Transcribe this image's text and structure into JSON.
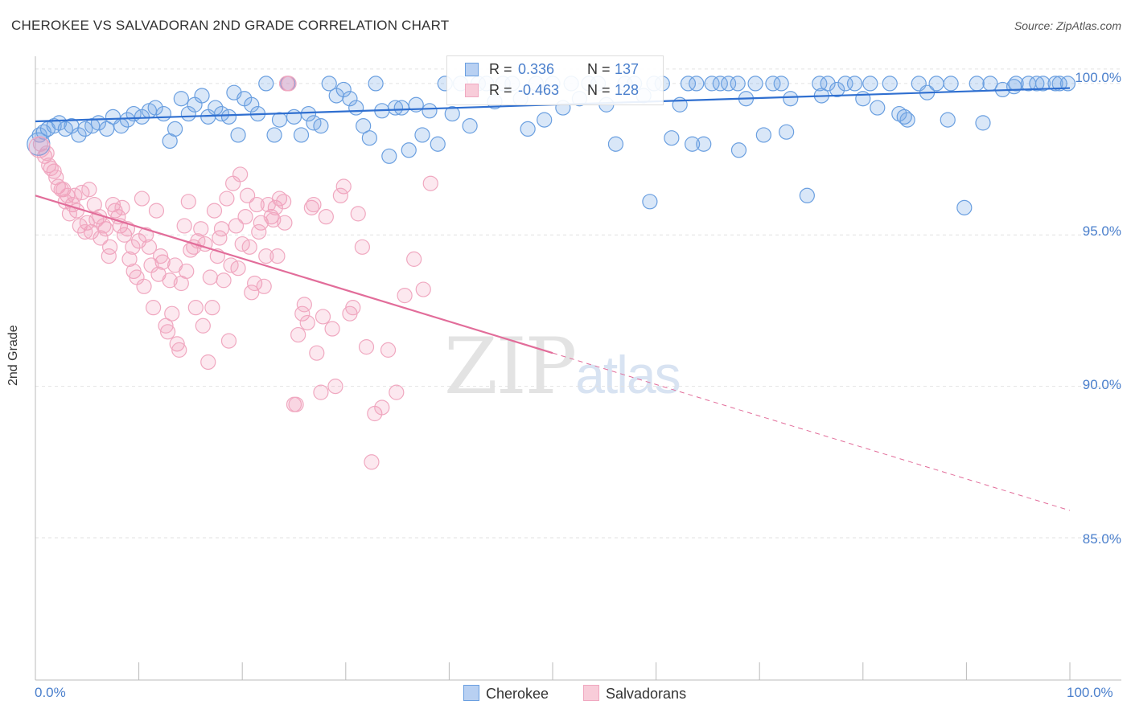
{
  "title": "CHEROKEE VS SALVADORAN 2ND GRADE CORRELATION CHART",
  "source": "Source: ZipAtlas.com",
  "watermark": {
    "zip": "ZIP",
    "atlas": "atlas"
  },
  "legend": {
    "r_label": "R =",
    "n_label": "N =",
    "cherokee": {
      "r": "0.336",
      "n": "137"
    },
    "salvadoran": {
      "r": "-0.463",
      "n": "128"
    }
  },
  "chart_data": {
    "type": "scatter",
    "title": "CHEROKEE VS SALVADORAN 2ND GRADE CORRELATION CHART",
    "xlabel": "",
    "ylabel": "2nd Grade",
    "xlim": [
      0,
      100
    ],
    "ylim": [
      80.3,
      100.9
    ],
    "x_tick_labels": [
      "0.0%",
      "100.0%"
    ],
    "y_ticks": [
      85,
      90,
      95,
      100
    ],
    "y_tick_labels": [
      "85.0%",
      "90.0%",
      "95.0%",
      "100.0%"
    ],
    "legend_position": "top-center",
    "series": [
      {
        "name": "Cherokee",
        "color": "#6a9fe0",
        "line_color": "#2f6fd0",
        "trend": {
          "x": [
            0,
            100
          ],
          "y": [
            98.75,
            99.85
          ],
          "dashed_from": null
        },
        "points": [
          [
            0.4,
            98.3
          ],
          [
            0.8,
            98.4
          ],
          [
            1.2,
            98.5
          ],
          [
            1.8,
            98.6
          ],
          [
            2.3,
            98.7
          ],
          [
            2.9,
            98.5
          ],
          [
            3.5,
            98.6
          ],
          [
            4.2,
            98.3
          ],
          [
            4.8,
            98.5
          ],
          [
            5.5,
            98.6
          ],
          [
            6.1,
            98.7
          ],
          [
            6.9,
            98.5
          ],
          [
            7.5,
            98.9
          ],
          [
            8.3,
            98.6
          ],
          [
            8.9,
            98.8
          ],
          [
            9.5,
            99.0
          ],
          [
            10.3,
            98.9
          ],
          [
            11.0,
            99.1
          ],
          [
            11.6,
            99.2
          ],
          [
            12.4,
            99.0
          ],
          [
            13.0,
            98.1
          ],
          [
            13.5,
            98.5
          ],
          [
            14.1,
            99.5
          ],
          [
            14.8,
            99.0
          ],
          [
            15.4,
            99.3
          ],
          [
            16.1,
            99.6
          ],
          [
            16.7,
            98.9
          ],
          [
            17.4,
            99.2
          ],
          [
            18.0,
            99.0
          ],
          [
            18.7,
            98.9
          ],
          [
            19.2,
            99.7
          ],
          [
            19.6,
            98.3
          ],
          [
            20.2,
            99.5
          ],
          [
            20.9,
            99.3
          ],
          [
            21.5,
            99.0
          ],
          [
            22.3,
            100.0
          ],
          [
            23.1,
            98.3
          ],
          [
            23.6,
            98.8
          ],
          [
            24.4,
            100.0
          ],
          [
            25.0,
            98.9
          ],
          [
            25.7,
            98.3
          ],
          [
            26.4,
            99.0
          ],
          [
            26.9,
            98.7
          ],
          [
            27.6,
            98.6
          ],
          [
            28.4,
            100.0
          ],
          [
            29.1,
            99.6
          ],
          [
            29.8,
            99.8
          ],
          [
            30.4,
            99.5
          ],
          [
            31.0,
            99.2
          ],
          [
            31.7,
            98.6
          ],
          [
            32.3,
            98.2
          ],
          [
            32.9,
            100.0
          ],
          [
            33.5,
            99.1
          ],
          [
            34.2,
            97.6
          ],
          [
            34.8,
            99.2
          ],
          [
            35.4,
            99.2
          ],
          [
            36.1,
            97.8
          ],
          [
            36.8,
            99.3
          ],
          [
            37.4,
            98.3
          ],
          [
            38.1,
            99.1
          ],
          [
            38.9,
            98.0
          ],
          [
            39.6,
            100.0
          ],
          [
            40.3,
            99.0
          ],
          [
            41.1,
            100.0
          ],
          [
            42.0,
            98.6
          ],
          [
            42.8,
            100.0
          ],
          [
            43.6,
            100.0
          ],
          [
            44.4,
            99.4
          ],
          [
            45.2,
            100.0
          ],
          [
            46.1,
            100.0
          ],
          [
            46.9,
            99.5
          ],
          [
            47.6,
            98.5
          ],
          [
            48.4,
            100.0
          ],
          [
            49.2,
            98.8
          ],
          [
            50.0,
            100.0
          ],
          [
            51.0,
            99.2
          ],
          [
            51.8,
            100.0
          ],
          [
            52.6,
            99.5
          ],
          [
            53.5,
            100.0
          ],
          [
            54.4,
            100.0
          ],
          [
            55.2,
            99.3
          ],
          [
            56.1,
            98.0
          ],
          [
            57.0,
            100.0
          ],
          [
            57.9,
            100.0
          ],
          [
            58.8,
            99.6
          ],
          [
            59.8,
            100.0
          ],
          [
            60.6,
            100.0
          ],
          [
            61.5,
            98.2
          ],
          [
            62.3,
            99.3
          ],
          [
            63.1,
            100.0
          ],
          [
            63.9,
            100.0
          ],
          [
            64.6,
            98.0
          ],
          [
            65.4,
            100.0
          ],
          [
            66.2,
            100.0
          ],
          [
            67.0,
            100.0
          ],
          [
            67.9,
            100.0
          ],
          [
            68.7,
            99.5
          ],
          [
            69.6,
            100.0
          ],
          [
            70.4,
            98.3
          ],
          [
            71.3,
            100.0
          ],
          [
            72.1,
            100.0
          ],
          [
            73.0,
            99.5
          ],
          [
            74.6,
            96.3
          ],
          [
            75.8,
            100.0
          ],
          [
            76.6,
            100.0
          ],
          [
            77.5,
            99.8
          ],
          [
            78.3,
            100.0
          ],
          [
            79.2,
            100.0
          ],
          [
            80.0,
            99.5
          ],
          [
            81.4,
            99.2
          ],
          [
            82.6,
            100.0
          ],
          [
            83.5,
            99.0
          ],
          [
            84.3,
            98.8
          ],
          [
            85.4,
            100.0
          ],
          [
            86.2,
            99.7
          ],
          [
            87.1,
            100.0
          ],
          [
            88.5,
            100.0
          ],
          [
            89.8,
            95.9
          ],
          [
            91.0,
            100.0
          ],
          [
            92.3,
            100.0
          ],
          [
            93.5,
            99.8
          ],
          [
            94.8,
            100.0
          ],
          [
            96.0,
            100.0
          ],
          [
            97.4,
            100.0
          ],
          [
            98.6,
            100.0
          ],
          [
            99.8,
            100.0
          ],
          [
            59.4,
            96.1
          ],
          [
            63.5,
            98.0
          ],
          [
            68.0,
            97.8
          ],
          [
            72.6,
            98.4
          ],
          [
            76.0,
            99.6
          ],
          [
            80.7,
            100.0
          ],
          [
            84.0,
            98.9
          ],
          [
            88.2,
            98.8
          ],
          [
            91.6,
            98.7
          ],
          [
            94.6,
            99.9
          ],
          [
            96.8,
            100.0
          ],
          [
            99.0,
            100.0
          ]
        ]
      },
      {
        "name": "Salvadorans",
        "color": "#f0a8c0",
        "line_color": "#e26d9a",
        "trend": {
          "x": [
            0,
            100
          ],
          "y": [
            96.3,
            85.9
          ],
          "dashed_from": 50
        },
        "points": [
          [
            0.5,
            98.0
          ],
          [
            0.9,
            97.6
          ],
          [
            1.3,
            97.3
          ],
          [
            1.8,
            97.1
          ],
          [
            2.2,
            96.6
          ],
          [
            2.7,
            96.5
          ],
          [
            3.1,
            96.3
          ],
          [
            3.6,
            96.0
          ],
          [
            4.0,
            95.8
          ],
          [
            4.5,
            96.4
          ],
          [
            5.0,
            95.4
          ],
          [
            5.4,
            95.1
          ],
          [
            5.9,
            95.5
          ],
          [
            6.3,
            94.9
          ],
          [
            6.8,
            95.2
          ],
          [
            7.2,
            94.6
          ],
          [
            7.7,
            95.8
          ],
          [
            8.2,
            95.3
          ],
          [
            8.6,
            95.0
          ],
          [
            9.1,
            94.2
          ],
          [
            9.5,
            93.8
          ],
          [
            10.0,
            94.8
          ],
          [
            10.5,
            93.3
          ],
          [
            11.0,
            94.6
          ],
          [
            11.4,
            92.6
          ],
          [
            11.9,
            93.7
          ],
          [
            12.3,
            94.1
          ],
          [
            12.8,
            91.8
          ],
          [
            13.2,
            92.4
          ],
          [
            13.7,
            91.4
          ],
          [
            14.1,
            93.4
          ],
          [
            14.6,
            93.8
          ],
          [
            15.0,
            94.5
          ],
          [
            15.5,
            92.6
          ],
          [
            16.0,
            95.2
          ],
          [
            16.4,
            94.7
          ],
          [
            16.9,
            93.6
          ],
          [
            17.3,
            95.8
          ],
          [
            17.8,
            94.9
          ],
          [
            18.2,
            93.5
          ],
          [
            18.7,
            91.5
          ],
          [
            19.1,
            96.7
          ],
          [
            19.6,
            93.9
          ],
          [
            20.0,
            94.7
          ],
          [
            20.5,
            96.3
          ],
          [
            20.9,
            93.1
          ],
          [
            21.4,
            96.0
          ],
          [
            21.8,
            95.4
          ],
          [
            22.3,
            94.3
          ],
          [
            22.8,
            95.6
          ],
          [
            23.2,
            95.9
          ],
          [
            23.6,
            96.2
          ],
          [
            24.1,
            95.4
          ],
          [
            24.5,
            100.0
          ],
          [
            25.0,
            89.4
          ],
          [
            25.4,
            91.7
          ],
          [
            25.8,
            92.4
          ],
          [
            26.3,
            92.1
          ],
          [
            26.7,
            95.9
          ],
          [
            27.2,
            91.1
          ],
          [
            27.6,
            89.8
          ],
          [
            28.1,
            95.6
          ],
          [
            29.0,
            90.0
          ],
          [
            29.8,
            96.6
          ],
          [
            30.4,
            92.4
          ],
          [
            31.2,
            95.7
          ],
          [
            32.0,
            91.3
          ],
          [
            32.8,
            89.1
          ],
          [
            33.5,
            89.3
          ],
          [
            34.1,
            91.2
          ],
          [
            34.9,
            89.8
          ],
          [
            35.7,
            93.0
          ],
          [
            36.6,
            94.2
          ],
          [
            37.5,
            93.2
          ],
          [
            38.2,
            96.7
          ],
          [
            1.1,
            97.7
          ],
          [
            1.5,
            97.2
          ],
          [
            2.0,
            96.9
          ],
          [
            2.5,
            96.5
          ],
          [
            2.9,
            96.1
          ],
          [
            3.3,
            95.7
          ],
          [
            3.8,
            96.3
          ],
          [
            4.3,
            95.3
          ],
          [
            4.8,
            95.1
          ],
          [
            5.2,
            96.5
          ],
          [
            5.7,
            96.0
          ],
          [
            6.2,
            95.6
          ],
          [
            6.6,
            95.3
          ],
          [
            7.1,
            94.3
          ],
          [
            7.5,
            96.0
          ],
          [
            8.0,
            95.6
          ],
          [
            8.4,
            95.9
          ],
          [
            8.9,
            95.2
          ],
          [
            9.4,
            94.6
          ],
          [
            9.8,
            93.6
          ],
          [
            10.3,
            96.2
          ],
          [
            10.7,
            95.0
          ],
          [
            11.2,
            94.0
          ],
          [
            11.7,
            95.8
          ],
          [
            12.1,
            94.3
          ],
          [
            12.6,
            92.0
          ],
          [
            13.0,
            93.5
          ],
          [
            13.5,
            94.0
          ],
          [
            13.9,
            91.2
          ],
          [
            14.4,
            95.3
          ],
          [
            14.8,
            96.1
          ],
          [
            15.3,
            94.6
          ],
          [
            15.7,
            94.8
          ],
          [
            16.2,
            92.0
          ],
          [
            16.7,
            90.8
          ],
          [
            17.1,
            92.6
          ],
          [
            17.6,
            94.3
          ],
          [
            18.0,
            95.2
          ],
          [
            18.5,
            96.2
          ],
          [
            18.9,
            94.0
          ],
          [
            19.4,
            95.3
          ],
          [
            19.8,
            97.0
          ],
          [
            20.3,
            95.6
          ],
          [
            20.7,
            94.6
          ],
          [
            21.2,
            93.4
          ],
          [
            21.6,
            95.1
          ],
          [
            22.1,
            93.3
          ],
          [
            22.5,
            96.0
          ],
          [
            23.0,
            95.5
          ],
          [
            23.4,
            94.3
          ],
          [
            24.0,
            96.1
          ],
          [
            24.3,
            100.0
          ],
          [
            25.2,
            89.4
          ],
          [
            26.0,
            92.7
          ],
          [
            26.9,
            96.0
          ],
          [
            27.8,
            92.3
          ],
          [
            28.7,
            91.9
          ],
          [
            29.5,
            96.3
          ],
          [
            30.7,
            92.6
          ],
          [
            31.6,
            94.6
          ],
          [
            32.5,
            87.5
          ]
        ]
      }
    ]
  }
}
